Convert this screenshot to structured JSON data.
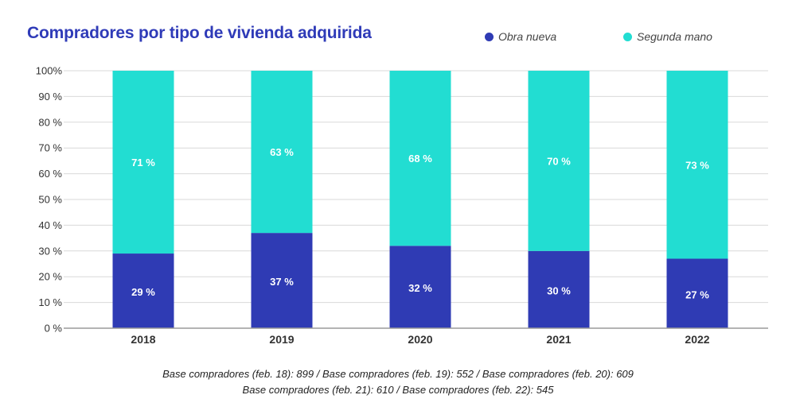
{
  "chart_data": {
    "type": "bar",
    "stacked": true,
    "title": "Compradores por tipo de vivienda adquirida",
    "categories": [
      "2018",
      "2019",
      "2020",
      "2021",
      "2022"
    ],
    "series": [
      {
        "name": "Obra nueva",
        "color": "#2f3bb4",
        "values": [
          29,
          37,
          32,
          30,
          27
        ],
        "labels": [
          "29 %",
          "37 %",
          "32 %",
          "30 %",
          "27 %"
        ]
      },
      {
        "name": "Segunda mano",
        "color": "#22ddd2",
        "values": [
          71,
          63,
          68,
          70,
          73
        ],
        "labels": [
          "71 %",
          "63 %",
          "68 %",
          "70 %",
          "73 %"
        ]
      }
    ],
    "yticks": [
      0,
      10,
      20,
      30,
      40,
      50,
      60,
      70,
      80,
      90,
      100
    ],
    "ytick_labels": [
      "0 %",
      "10 %",
      "20 %",
      "30 %",
      "40 %",
      "50 %",
      "60 %",
      "70 %",
      "80 %",
      "90 %",
      "100%"
    ],
    "ylim": [
      0,
      100
    ],
    "xlabel": "",
    "ylabel": "",
    "grid": true,
    "legend_position": "top-right"
  },
  "notes": {
    "line1": "Base compradores (feb. 18): 899 / Base compradores (feb. 19): 552 / Base compradores (feb. 20): 609",
    "line2": "Base compradores (feb. 21): 610 / Base compradores (feb. 22): 545"
  }
}
